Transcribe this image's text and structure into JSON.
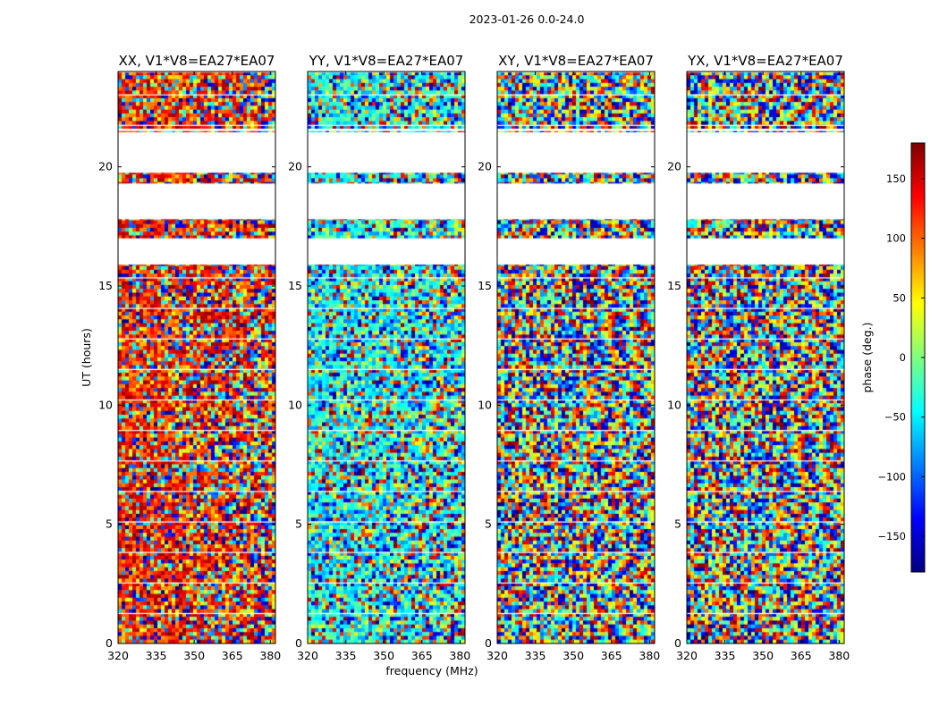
{
  "figure": {
    "suptitle": "2023-01-26 0.0-24.0"
  },
  "chart_data": {
    "type": "heatmap",
    "xlabel": "frequency (MHz)",
    "ylabel": "UT (hours)",
    "xlim": [
      320,
      382
    ],
    "ylim": [
      0,
      24
    ],
    "x_ticks": [
      "320",
      "335",
      "350",
      "365",
      "380"
    ],
    "y_ticks": [
      "0",
      "5",
      "10",
      "15",
      "20"
    ],
    "x_tick_values": [
      320,
      335,
      350,
      365,
      380
    ],
    "y_tick_values": [
      0,
      5,
      10,
      15,
      20
    ],
    "panels": [
      {
        "name": "XX",
        "title": "XX, V1*V8=EA27*EA07",
        "bias": 0.85
      },
      {
        "name": "YY",
        "title": "YY, V1*V8=EA27*EA07",
        "bias": 0.38
      },
      {
        "name": "XY",
        "title": "XY, V1*V8=EA27*EA07",
        "bias": -1
      },
      {
        "name": "YX",
        "title": "YX, V1*V8=EA27*EA07",
        "bias": -1
      }
    ],
    "blank_time_ranges_hours": [
      [
        17.8,
        19.3
      ],
      [
        15.9,
        17.0
      ],
      [
        19.75,
        21.45
      ],
      [
        21.5,
        21.6
      ]
    ],
    "colorbar": {
      "label": "phase (deg.)",
      "range": [
        -180,
        180
      ],
      "ticks": [
        "150",
        "100",
        "50",
        "0",
        "−50",
        "−100",
        "−150"
      ],
      "tick_values": [
        150,
        100,
        50,
        0,
        -50,
        -100,
        -150
      ],
      "colormap": "jet"
    },
    "grid": false
  }
}
